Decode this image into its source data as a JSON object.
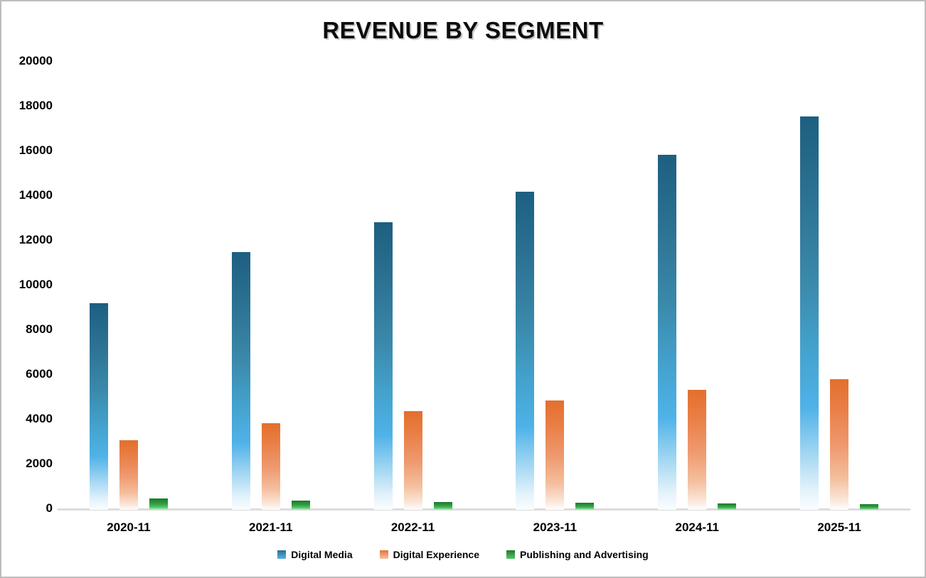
{
  "header": {
    "title": "REVENUE BY SEGMENT"
  },
  "colors": {
    "digital_media_top": "#1D5F80",
    "digital_media_bright": "#4FB2E8",
    "digital_experience_top": "#E36F2D",
    "digital_experience_bright": "#F09E74",
    "publishing_top": "#1D782B",
    "publishing_bright": "#52C167",
    "axis_line": "#DCDCDC",
    "frame_border": "#BDBDBD",
    "text": "#000000"
  },
  "chart_data": {
    "type": "bar",
    "title": "REVENUE BY SEGMENT",
    "categories": [
      "2020-11",
      "2021-11",
      "2022-11",
      "2023-11",
      "2024-11",
      "2025-11"
    ],
    "series": [
      {
        "name": "Digital Media",
        "values": [
          9233,
          11520,
          12842,
          14215,
          15864,
          17600
        ]
      },
      {
        "name": "Digital Experience",
        "values": [
          3126,
          3867,
          4422,
          4890,
          5366,
          5850
        ]
      },
      {
        "name": "Publishing and Advertising",
        "values": [
          509,
          398,
          342,
          304,
          275,
          250
        ]
      }
    ],
    "xlabel": "",
    "ylabel": "",
    "ylim": [
      0,
      20000
    ],
    "yticks": [
      0,
      2000,
      4000,
      6000,
      8000,
      10000,
      12000,
      14000,
      16000,
      18000,
      20000
    ],
    "grid": false,
    "legend_position": "bottom"
  }
}
